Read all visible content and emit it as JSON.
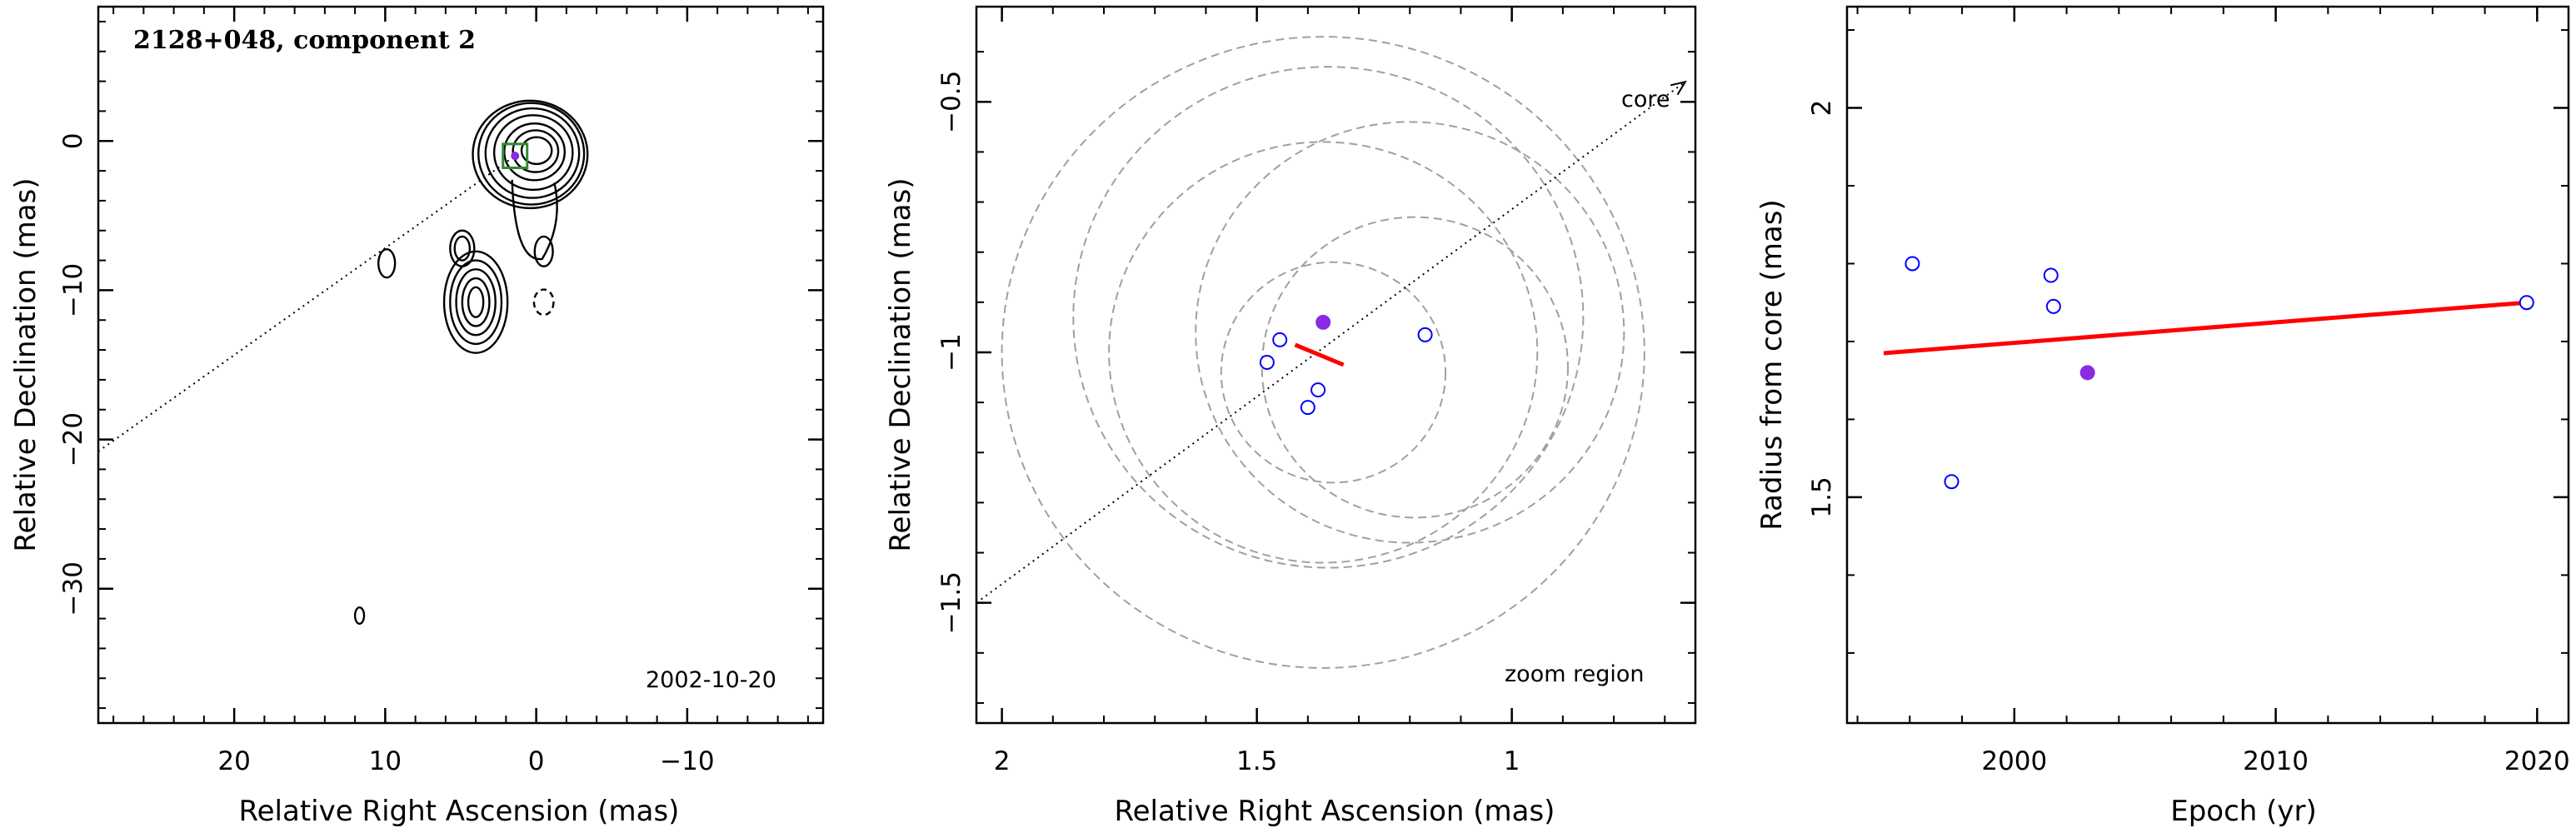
{
  "chart_data": [
    {
      "type": "contour",
      "title": "2128+048, component 2",
      "annotation": "2002-10-20",
      "xlabel": "Relative Right Ascension (mas)",
      "ylabel": "Relative Declination (mas)",
      "xlim": [
        29,
        -19
      ],
      "ylim": [
        -39,
        9
      ],
      "xticks": [
        20,
        10,
        0,
        -10
      ],
      "xtick_labels": [
        "20",
        "10",
        "0",
        "−10"
      ],
      "yticks": [
        0,
        -10,
        -20,
        -30
      ],
      "ytick_labels": [
        "0",
        "−10",
        "−20",
        "−30"
      ],
      "core_line": {
        "from": [
          29,
          -20.8
        ],
        "to": [
          1.4,
          -1.0
        ]
      },
      "component_box": {
        "center": [
          1.4,
          -1.0
        ],
        "size": 1.6,
        "color": "#2e8b2e"
      },
      "component_marker": {
        "x": 1.4,
        "y": -1.0,
        "color": "#8a2be2"
      },
      "contour_groups": [
        {
          "name": "core",
          "cx": 0.4,
          "cy": -0.9,
          "rx": [
            1.0,
            1.5,
            2.0,
            2.6,
            3.1,
            3.5,
            3.8
          ],
          "ry": [
            0.9,
            1.4,
            1.9,
            2.5,
            3.0,
            3.4,
            3.6
          ],
          "peak_offset": [
            0.5,
            0.3
          ]
        },
        {
          "name": "southern-knot",
          "cx": 4.0,
          "cy": -10.8,
          "rx": [
            0.5,
            0.9,
            1.3,
            1.7,
            2.1
          ],
          "ry": [
            1.0,
            1.6,
            2.2,
            2.8,
            3.4
          ]
        },
        {
          "name": "knot-upper",
          "cx": 4.9,
          "cy": -7.2,
          "rx": [
            0.5,
            0.8
          ],
          "ry": [
            0.8,
            1.2
          ]
        },
        {
          "name": "knot-west",
          "cx": 9.9,
          "cy": -8.2,
          "rx": [
            0.55
          ],
          "ry": [
            0.95
          ]
        },
        {
          "name": "knot-east",
          "cx": -0.5,
          "cy": -7.4,
          "rx": [
            0.6
          ],
          "ry": [
            1.0
          ]
        },
        {
          "name": "negative-contour",
          "cx": -0.5,
          "cy": -10.8,
          "rx": [
            0.65
          ],
          "ry": [
            0.85
          ],
          "dashed": true
        },
        {
          "name": "knot-far",
          "cx": 11.7,
          "cy": -31.8,
          "rx": [
            0.3
          ],
          "ry": [
            0.55
          ]
        }
      ]
    },
    {
      "type": "scatter",
      "title": "",
      "annotation": "zoom region",
      "core_label": "core",
      "xlabel": "Relative Right Ascension (mas)",
      "ylabel": "Relative Declination (mas)",
      "xlim": [
        2.05,
        0.64
      ],
      "ylim": [
        -1.74,
        -0.31
      ],
      "xticks": [
        2,
        1.5,
        1
      ],
      "xtick_labels": [
        "2",
        "1.5",
        "1"
      ],
      "yticks": [
        -0.5,
        -1,
        -1.5
      ],
      "ytick_labels": [
        "−0.5",
        "−1",
        "−1.5"
      ],
      "core_direction_line": {
        "from": [
          2.05,
          -1.5
        ],
        "to": [
          0.66,
          -0.46
        ]
      },
      "circles": [
        {
          "cx": 1.37,
          "cy": -1.0,
          "r": 0.63
        },
        {
          "cx": 1.36,
          "cy": -0.93,
          "r": 0.5
        },
        {
          "cx": 1.37,
          "cy": -1.0,
          "r": 0.42
        },
        {
          "cx": 1.2,
          "cy": -0.96,
          "r": 0.42
        },
        {
          "cx": 1.35,
          "cy": -1.04,
          "r": 0.22
        },
        {
          "cx": 1.19,
          "cy": -1.03,
          "r": 0.3
        }
      ],
      "open_points": [
        {
          "x": 1.455,
          "y": -0.975
        },
        {
          "x": 1.48,
          "y": -1.02
        },
        {
          "x": 1.4,
          "y": -1.11
        },
        {
          "x": 1.38,
          "y": -1.075
        },
        {
          "x": 1.17,
          "y": -0.965
        }
      ],
      "filled_point": {
        "x": 1.37,
        "y": -0.94
      },
      "fit_segment": {
        "from": [
          1.425,
          -0.985
        ],
        "to": [
          1.33,
          -1.025
        ]
      },
      "colors": {
        "open": "#0000ff",
        "filled": "#8a2be2",
        "fit": "#ff0000",
        "circle": "#a0a0a0"
      }
    },
    {
      "type": "scatter",
      "title": "",
      "xlabel": "Epoch (yr)",
      "ylabel": "Radius from core (mas)",
      "xlim": [
        1993.6,
        2021.2
      ],
      "ylim": [
        1.21,
        2.13
      ],
      "xticks": [
        2000,
        2010,
        2020
      ],
      "xtick_labels": [
        "2000",
        "2010",
        "2020"
      ],
      "yticks": [
        2,
        1.5
      ],
      "ytick_labels": [
        "2",
        "1.5"
      ],
      "open_points": [
        {
          "x": 1996.1,
          "y": 1.8
        },
        {
          "x": 1997.6,
          "y": 1.52
        },
        {
          "x": 2001.4,
          "y": 1.785
        },
        {
          "x": 2001.5,
          "y": 1.745
        },
        {
          "x": 2019.6,
          "y": 1.75
        }
      ],
      "filled_point": {
        "x": 2002.8,
        "y": 1.66
      },
      "fit_line": {
        "x": [
          1995.0,
          2019.6
        ],
        "y": [
          1.685,
          1.75
        ]
      },
      "colors": {
        "open": "#0000ff",
        "filled": "#8a2be2",
        "fit": "#ff0000"
      }
    }
  ]
}
